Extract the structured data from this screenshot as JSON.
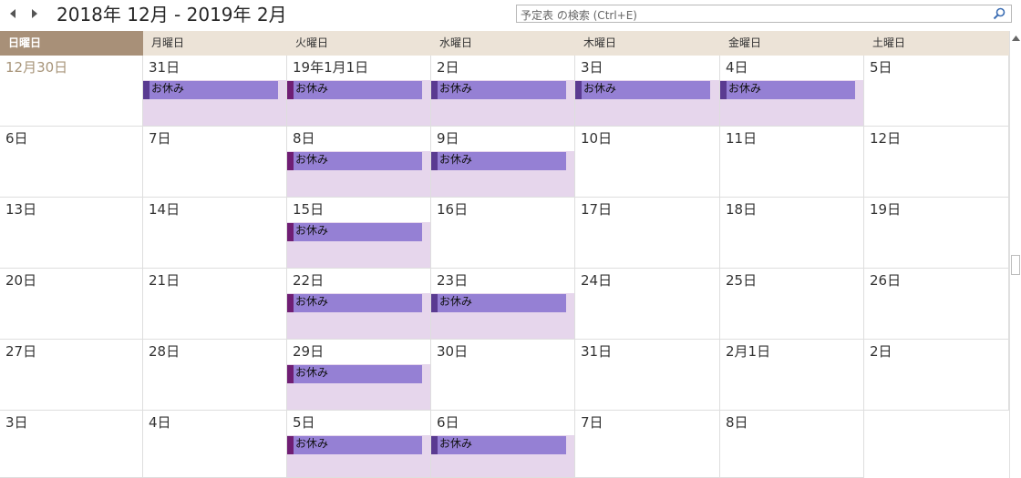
{
  "header": {
    "title": "2018年 12月 - 2019年 2月",
    "search_placeholder": "予定表 の検索 (Ctrl+E)"
  },
  "icons": {
    "prev": "chevron-left-icon",
    "next": "chevron-right-icon",
    "search": "search-icon"
  },
  "colors": {
    "event_fill": "#9580d4",
    "event_accent": "#5a3b91",
    "event_accent_alt": "#6f1e74",
    "shaded_day": "#e6d6ec",
    "weekday_header": "#ece3d7",
    "active_weekday": "#a89078"
  },
  "weekdays": [
    "日曜日",
    "月曜日",
    "火曜日",
    "水曜日",
    "木曜日",
    "金曜日",
    "土曜日"
  ],
  "active_weekday_index": 0,
  "weeks": [
    [
      {
        "label": "12月30日",
        "other": true,
        "event": "",
        "shaded": false
      },
      {
        "label": "31日",
        "event": "お休み",
        "shaded": true,
        "accent": "purple"
      },
      {
        "label": "19年1月1日",
        "event": "お休み",
        "shaded": true,
        "accent": "magenta"
      },
      {
        "label": "2日",
        "event": "お休み",
        "shaded": true,
        "accent": "purple"
      },
      {
        "label": "3日",
        "event": "お休み",
        "shaded": true,
        "accent": "purple"
      },
      {
        "label": "4日",
        "event": "お休み",
        "shaded": true,
        "accent": "purple"
      },
      {
        "label": "5日",
        "event": "",
        "shaded": false
      }
    ],
    [
      {
        "label": "6日",
        "event": "",
        "shaded": false
      },
      {
        "label": "7日",
        "event": "",
        "shaded": false
      },
      {
        "label": "8日",
        "event": "お休み",
        "shaded": true,
        "accent": "magenta"
      },
      {
        "label": "9日",
        "event": "お休み",
        "shaded": true,
        "accent": "purple"
      },
      {
        "label": "10日",
        "event": "",
        "shaded": false
      },
      {
        "label": "11日",
        "event": "",
        "shaded": false
      },
      {
        "label": "12日",
        "event": "",
        "shaded": false
      }
    ],
    [
      {
        "label": "13日",
        "event": "",
        "shaded": false
      },
      {
        "label": "14日",
        "event": "",
        "shaded": false
      },
      {
        "label": "15日",
        "event": "お休み",
        "shaded": true,
        "accent": "magenta"
      },
      {
        "label": "16日",
        "event": "",
        "shaded": false
      },
      {
        "label": "17日",
        "event": "",
        "shaded": false
      },
      {
        "label": "18日",
        "event": "",
        "shaded": false
      },
      {
        "label": "19日",
        "event": "",
        "shaded": false
      }
    ],
    [
      {
        "label": "20日",
        "event": "",
        "shaded": false
      },
      {
        "label": "21日",
        "event": "",
        "shaded": false
      },
      {
        "label": "22日",
        "event": "お休み",
        "shaded": true,
        "accent": "magenta"
      },
      {
        "label": "23日",
        "event": "お休み",
        "shaded": true,
        "accent": "purple"
      },
      {
        "label": "24日",
        "event": "",
        "shaded": false
      },
      {
        "label": "25日",
        "event": "",
        "shaded": false
      },
      {
        "label": "26日",
        "event": "",
        "shaded": false
      }
    ],
    [
      {
        "label": "27日",
        "event": "",
        "shaded": false
      },
      {
        "label": "28日",
        "event": "",
        "shaded": false
      },
      {
        "label": "29日",
        "event": "お休み",
        "shaded": true,
        "accent": "magenta"
      },
      {
        "label": "30日",
        "event": "",
        "shaded": false
      },
      {
        "label": "31日",
        "event": "",
        "shaded": false
      },
      {
        "label": "2月1日",
        "event": "",
        "shaded": false
      },
      {
        "label": "2日",
        "event": "",
        "shaded": false
      }
    ],
    [
      {
        "label": "3日",
        "event": "",
        "shaded": false
      },
      {
        "label": "4日",
        "event": "",
        "shaded": false
      },
      {
        "label": "5日",
        "event": "お休み",
        "shaded": true,
        "accent": "magenta"
      },
      {
        "label": "6日",
        "event": "お休み",
        "shaded": true,
        "accent": "purple"
      },
      {
        "label": "7日",
        "event": "",
        "shaded": false
      },
      {
        "label": "8日",
        "event": "",
        "shaded": false
      },
      {
        "label": "",
        "event": "",
        "shaded": false,
        "blank": true
      }
    ]
  ]
}
